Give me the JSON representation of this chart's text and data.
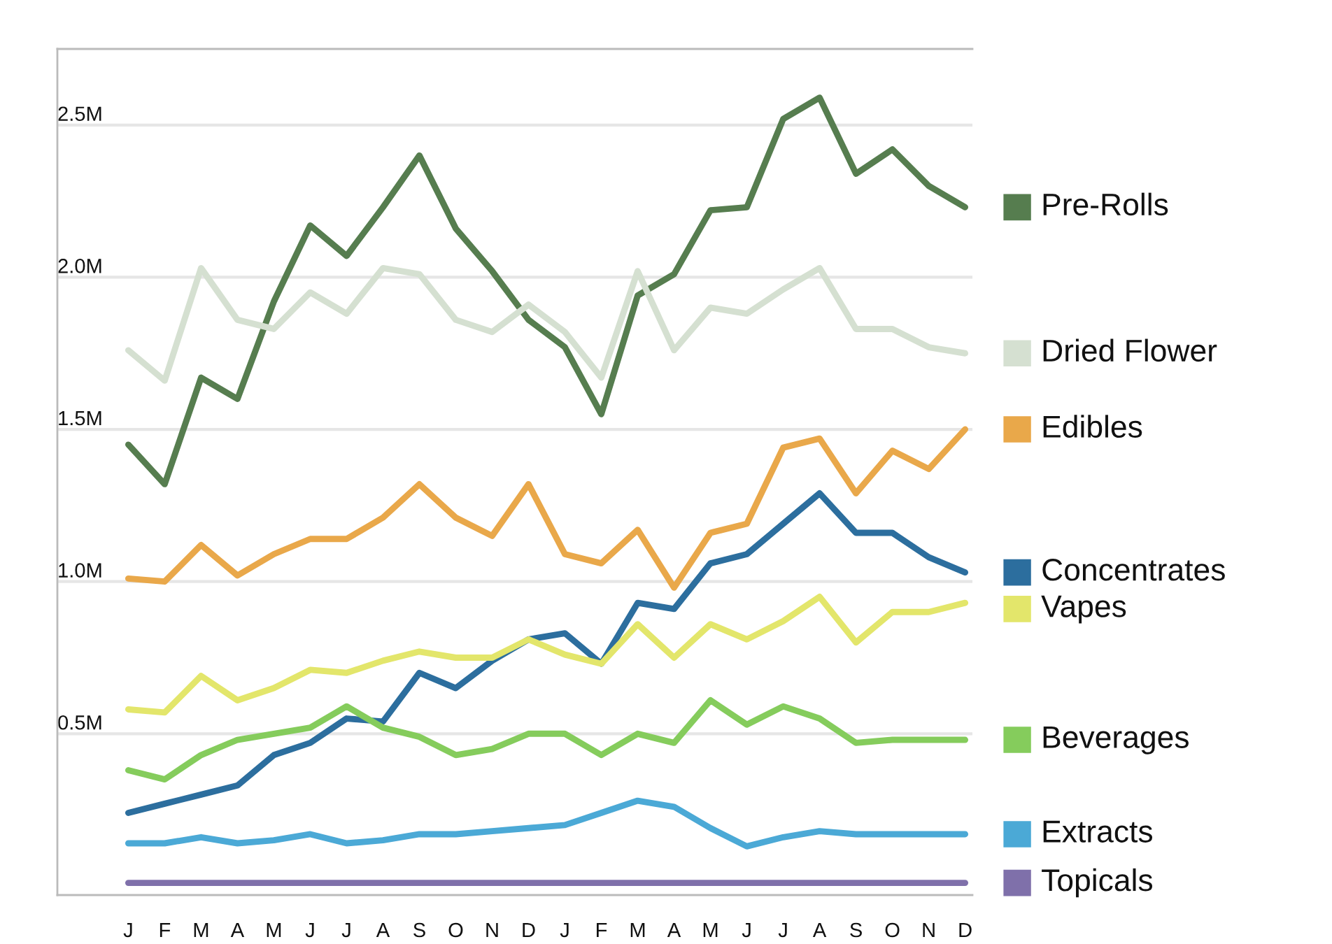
{
  "chart_data": {
    "type": "line",
    "categories": [
      "J",
      "F",
      "M",
      "A",
      "M",
      "J",
      "J",
      "A",
      "S",
      "O",
      "N",
      "D",
      "J",
      "F",
      "M",
      "A",
      "M",
      "J",
      "J",
      "A",
      "S",
      "O",
      "N",
      "D"
    ],
    "ylim": [
      -0.03,
      2.75
    ],
    "yticks": [
      {
        "value": 0.5,
        "label": "0.5M"
      },
      {
        "value": 1.0,
        "label": "1.0M"
      },
      {
        "value": 1.5,
        "label": "1.5M"
      },
      {
        "value": 2.0,
        "label": "2.0M"
      },
      {
        "value": 2.5,
        "label": "2.5M"
      }
    ],
    "grid": "y",
    "legend": "right",
    "marker": "none",
    "line_style": "solid",
    "series": [
      {
        "name": "Pre-Rolls",
        "color": "#567d4f",
        "values": [
          1.45,
          1.32,
          1.67,
          1.6,
          1.92,
          2.17,
          2.07,
          2.23,
          2.4,
          2.16,
          2.02,
          1.86,
          1.77,
          1.55,
          1.94,
          2.01,
          2.22,
          2.23,
          2.52,
          2.59,
          2.34,
          2.42,
          2.3,
          2.23
        ]
      },
      {
        "name": "Dried Flower",
        "color": "#d5e0d1",
        "values": [
          1.76,
          1.66,
          2.03,
          1.86,
          1.83,
          1.95,
          1.88,
          2.03,
          2.01,
          1.86,
          1.82,
          1.91,
          1.82,
          1.67,
          2.02,
          1.76,
          1.9,
          1.88,
          1.96,
          2.03,
          1.83,
          1.83,
          1.77,
          1.75
        ]
      },
      {
        "name": "Edibles",
        "color": "#e9a84a",
        "values": [
          1.01,
          1.0,
          1.12,
          1.02,
          1.09,
          1.14,
          1.14,
          1.21,
          1.32,
          1.21,
          1.15,
          1.32,
          1.09,
          1.06,
          1.17,
          0.98,
          1.16,
          1.19,
          1.44,
          1.47,
          1.29,
          1.43,
          1.37,
          1.5
        ]
      },
      {
        "name": "Concentrates",
        "color": "#2c6e9e",
        "values": [
          0.24,
          0.27,
          0.3,
          0.33,
          0.43,
          0.47,
          0.55,
          0.54,
          0.7,
          0.65,
          0.74,
          0.81,
          0.83,
          0.73,
          0.93,
          0.91,
          1.06,
          1.09,
          1.19,
          1.29,
          1.16,
          1.16,
          1.08,
          1.03
        ]
      },
      {
        "name": "Vapes",
        "color": "#e3e66b",
        "values": [
          0.58,
          0.57,
          0.69,
          0.61,
          0.65,
          0.71,
          0.7,
          0.74,
          0.77,
          0.75,
          0.75,
          0.81,
          0.76,
          0.73,
          0.86,
          0.75,
          0.86,
          0.81,
          0.87,
          0.95,
          0.8,
          0.9,
          0.9,
          0.93
        ]
      },
      {
        "name": "Beverages",
        "color": "#85cc5c",
        "values": [
          0.38,
          0.35,
          0.43,
          0.48,
          0.5,
          0.52,
          0.59,
          0.52,
          0.49,
          0.43,
          0.45,
          0.5,
          0.5,
          0.43,
          0.5,
          0.47,
          0.61,
          0.53,
          0.59,
          0.55,
          0.47,
          0.48,
          0.48,
          0.48
        ]
      },
      {
        "name": "Extracts",
        "color": "#4ba9d6",
        "values": [
          0.14,
          0.14,
          0.16,
          0.14,
          0.15,
          0.17,
          0.14,
          0.15,
          0.17,
          0.17,
          0.18,
          0.19,
          0.2,
          0.24,
          0.28,
          0.26,
          0.19,
          0.13,
          0.16,
          0.18,
          0.17,
          0.17,
          0.17,
          0.17
        ]
      },
      {
        "name": "Topicals",
        "color": "#7f70aa",
        "values": [
          0.01,
          0.01,
          0.01,
          0.01,
          0.01,
          0.01,
          0.01,
          0.01,
          0.01,
          0.01,
          0.01,
          0.01,
          0.01,
          0.01,
          0.01,
          0.01,
          0.01,
          0.01,
          0.01,
          0.01,
          0.01,
          0.01,
          0.01,
          0.01
        ]
      }
    ]
  }
}
